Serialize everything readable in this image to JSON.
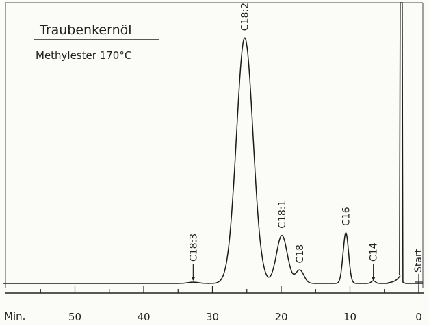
{
  "chart_data": {
    "type": "line",
    "title": "Traubenkernöl",
    "subtitle": "Methylester 170°C",
    "x_unit_label": "Min.",
    "x_ticks": [
      50,
      40,
      30,
      20,
      10,
      0
    ],
    "x_reversed": true,
    "xlim": [
      61,
      0
    ],
    "start_label": "Start",
    "peaks": [
      {
        "label": "C18:2",
        "time": 25.3,
        "height": 0.92
      },
      {
        "label": "C18:1",
        "time": 19.9,
        "height": 0.18
      },
      {
        "label": "C18",
        "time": 17.3,
        "height": 0.05
      },
      {
        "label": "C16",
        "time": 10.6,
        "height": 0.19
      },
      {
        "label": "C14",
        "time": 6.6,
        "height": 0.01
      },
      {
        "label": "C18:3",
        "time": 32.8,
        "height": 0.005
      }
    ],
    "arrow_markers": [
      "C18:3",
      "C14"
    ],
    "solvent_peak_time": 2.5,
    "colors": {
      "line": "#1a1a1a",
      "background": "#fbfbf8"
    }
  }
}
